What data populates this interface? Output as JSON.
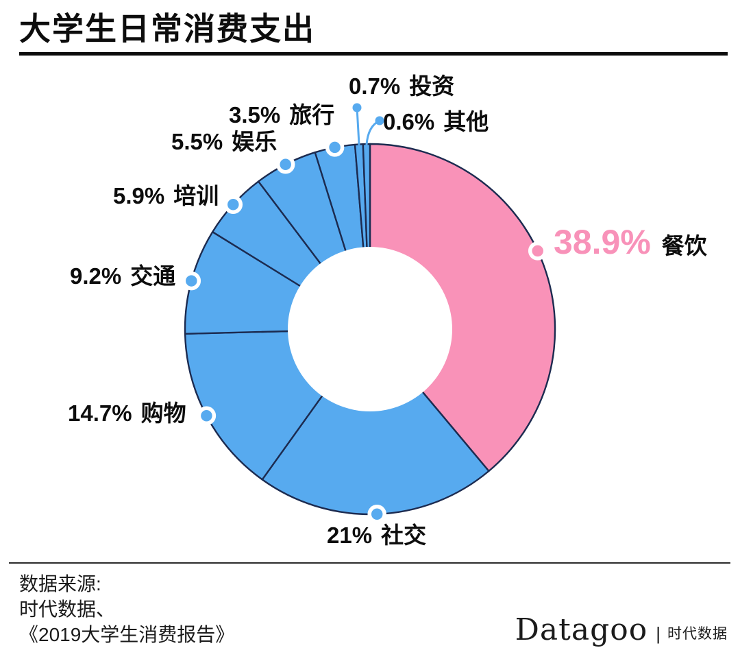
{
  "header": {
    "title": "大学生日常消费支出"
  },
  "chart_data": {
    "type": "pie",
    "style": "donut",
    "title": "大学生日常消费支出",
    "start_angle": "12-o'clock, clockwise",
    "colors": {
      "highlight": "#f992b8",
      "default": "#57aaef",
      "stroke": "#1c2b50",
      "highlight_text": "#f892b9"
    },
    "segments": [
      {
        "name": "餐饮",
        "value": 38.9,
        "label": "38.9%",
        "color": "#f992b8",
        "highlight": true
      },
      {
        "name": "社交",
        "value": 21,
        "label": "21%",
        "color": "#57aaef"
      },
      {
        "name": "购物",
        "value": 14.7,
        "label": "14.7%",
        "color": "#57aaef"
      },
      {
        "name": "交通",
        "value": 9.2,
        "label": "9.2%",
        "color": "#57aaef"
      },
      {
        "name": "培训",
        "value": 5.9,
        "label": "5.9%",
        "color": "#57aaef"
      },
      {
        "name": "娱乐",
        "value": 5.5,
        "label": "5.5%",
        "color": "#57aaef"
      },
      {
        "name": "旅行",
        "value": 3.5,
        "label": "3.5%",
        "color": "#57aaef"
      },
      {
        "name": "投资",
        "value": 0.7,
        "label": "0.7%",
        "color": "#57aaef"
      },
      {
        "name": "其他",
        "value": 0.6,
        "label": "0.6%",
        "color": "#57aaef"
      }
    ]
  },
  "footer": {
    "source_lines": [
      "数据来源:",
      "时代数据、",
      "《2019大学生消费报告》"
    ],
    "logo": {
      "brand": "Datagoo",
      "divider": "|",
      "suffix": "时代数据"
    }
  }
}
